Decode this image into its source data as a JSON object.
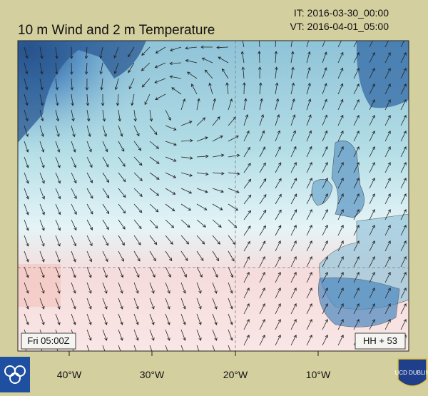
{
  "header": {
    "title": "10 m Wind and 2 m Temperature",
    "it": "IT: 2016-03-30_00:00",
    "vt": "VT: 2016-04-01_05:00"
  },
  "map": {
    "time_label": "Fri 05:00Z",
    "forecast_hour": "HH + 53",
    "x_tick_labels": [
      "40°W",
      "30°W",
      "20°W",
      "10°W"
    ]
  },
  "logos": {
    "right": "UCD DUBLIN"
  }
}
